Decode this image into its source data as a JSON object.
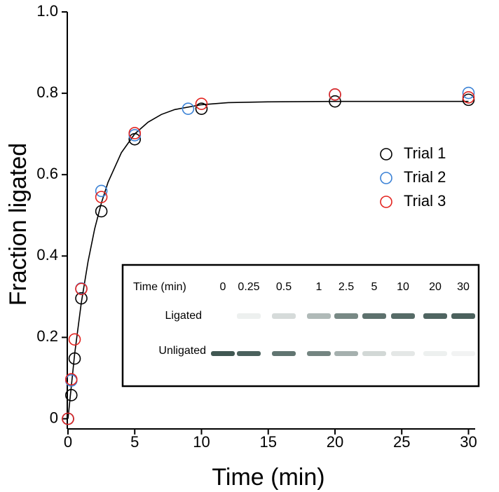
{
  "chart_data": {
    "type": "scatter",
    "x_label": "Time (min)",
    "y_label": "Fraction ligated",
    "xlim": [
      0,
      30.5
    ],
    "ylim": [
      -0.025,
      1
    ],
    "xticks": [
      0,
      5,
      10,
      15,
      20,
      25,
      30
    ],
    "yticks": [
      0,
      0.2,
      0.4,
      0.6,
      0.8,
      {
        "value": 1,
        "label": "1.0"
      }
    ],
    "legend": "upper right",
    "series": [
      {
        "name": "Trial 1",
        "color": "#000000",
        "x": [
          0,
          0.25,
          0.5,
          1,
          2.5,
          5,
          10,
          20,
          30
        ],
        "values": [
          0,
          0.058,
          0.148,
          0.296,
          0.51,
          0.687,
          0.762,
          0.78,
          0.784
        ]
      },
      {
        "name": "Trial 2",
        "color": "#3b82d6",
        "x": [
          0,
          0.25,
          1,
          2.5,
          5,
          9,
          20,
          30
        ],
        "values": [
          0,
          0.094,
          0.32,
          0.56,
          0.697,
          0.762,
          0.797,
          0.801
        ]
      },
      {
        "name": "Trial 3",
        "color": "#e3231f",
        "x": [
          0,
          0.25,
          0.5,
          1,
          2.5,
          5,
          10,
          20,
          30
        ],
        "values": [
          0,
          0.097,
          0.195,
          0.319,
          0.545,
          0.702,
          0.774,
          0.797,
          0.79
        ]
      }
    ],
    "fit": {
      "color": "#000000",
      "x": [
        0,
        0.5,
        1,
        1.5,
        2,
        2.5,
        3,
        4,
        5,
        6,
        7,
        8,
        10,
        12,
        15,
        20,
        25,
        30
      ],
      "values": [
        0,
        0.159,
        0.285,
        0.386,
        0.467,
        0.53,
        0.581,
        0.654,
        0.7,
        0.729,
        0.748,
        0.76,
        0.772,
        0.777,
        0.779,
        0.78,
        0.78,
        0.78
      ]
    },
    "inset": {
      "header": "Time (min)",
      "lanes": [
        "0",
        "0.25",
        "0.5",
        "1",
        "2.5",
        "5",
        "10",
        "20",
        "30"
      ],
      "rows": [
        "Ligated",
        "Unligated"
      ]
    }
  }
}
